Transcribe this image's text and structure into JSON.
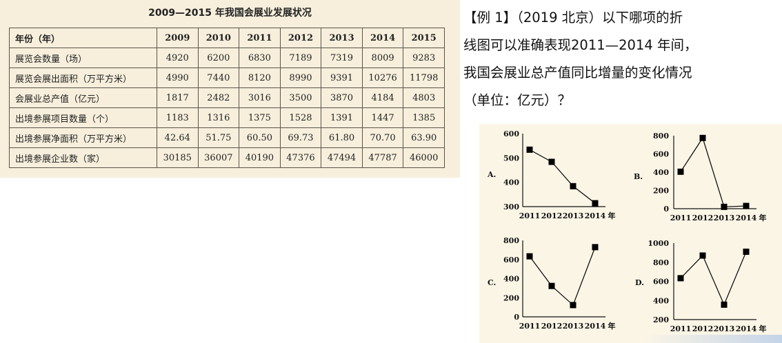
{
  "table": {
    "title": "2009—2015 年我国会展业发展状况",
    "header": [
      "年份（年）",
      "2009",
      "2010",
      "2011",
      "2012",
      "2013",
      "2014",
      "2015"
    ],
    "rows": [
      [
        "展览会数量（场）",
        "4920",
        "6200",
        "6830",
        "7189",
        "7319",
        "8009",
        "9283"
      ],
      [
        "展览会展出面积（万平方米）",
        "4990",
        "7440",
        "8120",
        "8990",
        "9391",
        "10276",
        "11798"
      ],
      [
        "会展业总产值（亿元）",
        "1817",
        "2482",
        "3016",
        "3500",
        "3870",
        "4184",
        "4803"
      ],
      [
        "出境参展项目数量（个）",
        "1183",
        "1316",
        "1375",
        "1528",
        "1391",
        "1447",
        "1385"
      ],
      [
        "出境参展净面积（万平方米）",
        "42.64",
        "51.75",
        "60.50",
        "69.73",
        "61.80",
        "70.70",
        "63.90"
      ],
      [
        "出境参展企业数（家）",
        "30185",
        "36007",
        "40190",
        "47376",
        "47494",
        "47787",
        "46000"
      ]
    ]
  },
  "question": {
    "lines": [
      "【例 1】（2019 北京）以下哪项的折",
      "线图可以准确表现2011—2014 年间，",
      "我国会展业总产值同比增量的变化情况",
      "（单位：亿元）？"
    ]
  },
  "chart_data": [
    {
      "type": "line",
      "option": "A.",
      "categories": [
        "2011",
        "2012",
        "2013",
        "2014"
      ],
      "x_unit": "年",
      "values": [
        534,
        484,
        384,
        314
      ],
      "ylim": [
        300,
        600
      ],
      "yticks": [
        "300",
        "400",
        "500",
        "600"
      ],
      "marker": "square"
    },
    {
      "type": "line",
      "option": "B.",
      "categories": [
        "2011",
        "2012",
        "2013",
        "2014"
      ],
      "x_unit": "年",
      "values": [
        405,
        775,
        20,
        30
      ],
      "ylim": [
        0,
        800
      ],
      "yticks": [
        "0",
        "200",
        "400",
        "600",
        "800"
      ],
      "marker": "square"
    },
    {
      "type": "line",
      "option": "C.",
      "categories": [
        "2011",
        "2012",
        "2013",
        "2014"
      ],
      "x_unit": "年",
      "values": [
        633,
        323,
        123,
        729
      ],
      "ylim": [
        0,
        800
      ],
      "yticks": [
        "0",
        "200",
        "400",
        "600",
        "800"
      ],
      "marker": "square"
    },
    {
      "type": "line",
      "option": "D.",
      "categories": [
        "2011",
        "2012",
        "2013",
        "2014"
      ],
      "x_unit": "年",
      "values": [
        633,
        870,
        356,
        910
      ],
      "ylim": [
        200,
        1000
      ],
      "yticks": [
        "200",
        "400",
        "600",
        "800",
        "1000"
      ],
      "marker": "square"
    }
  ]
}
